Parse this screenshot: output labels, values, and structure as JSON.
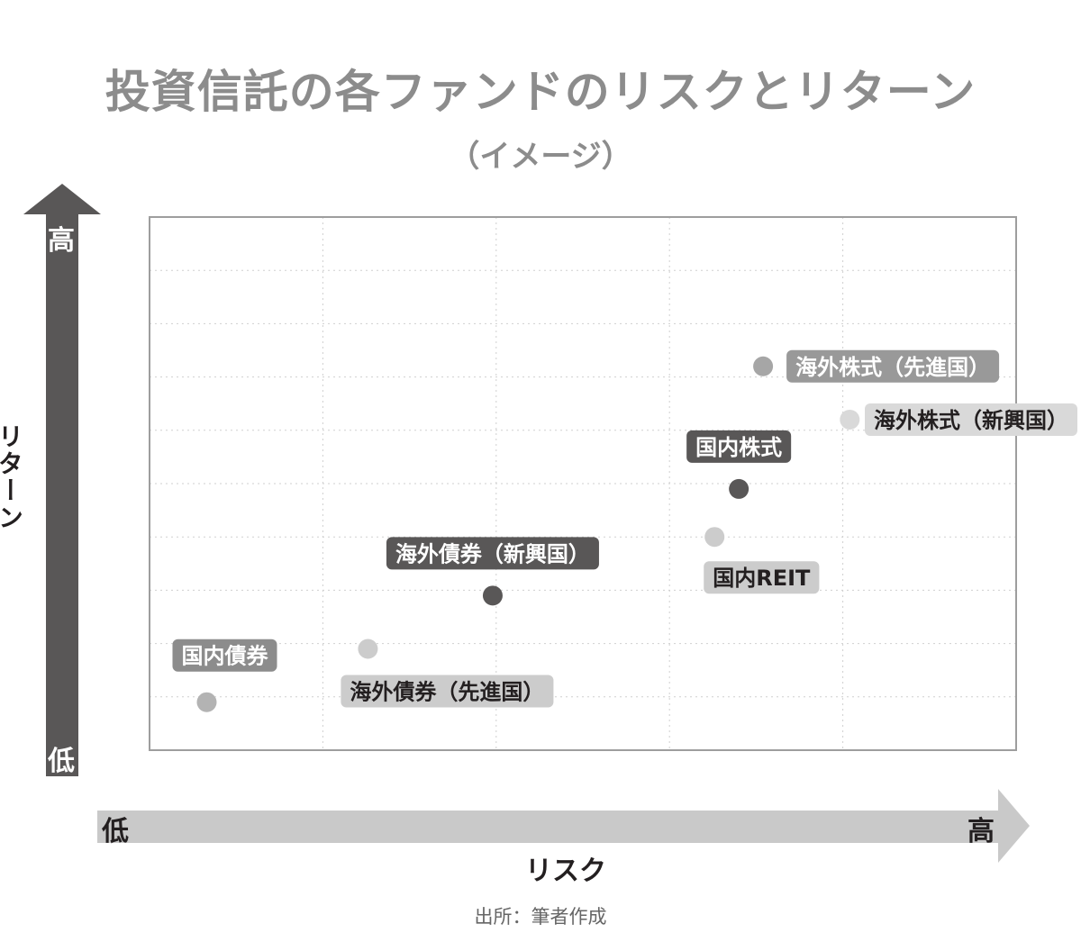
{
  "title": "投資信託の各ファンドのリスクとリターン",
  "subtitle": "（イメージ）",
  "source": "出所：筆者作成",
  "chart_data": {
    "type": "scatter",
    "xlabel": "リスク",
    "ylabel": "リターン",
    "x_axis_ends": {
      "low": "低",
      "high": "高"
    },
    "y_axis_ends": {
      "low": "低",
      "high": "高"
    },
    "xlim": [
      0,
      5
    ],
    "ylim": [
      0,
      10
    ],
    "grid": true,
    "points": [
      {
        "name": "国内債券",
        "x": 0.33,
        "y": 0.9,
        "color": "#b3b3b3",
        "label_color": "#8c8c8c",
        "label_position": "above-left"
      },
      {
        "name": "海外債券（先進国）",
        "x": 1.26,
        "y": 1.9,
        "color": "#cccccc",
        "label_color": "#cccccc",
        "label_position": "below-right"
      },
      {
        "name": "海外債券（新興国）",
        "x": 1.98,
        "y": 2.9,
        "color": "#595757",
        "label_color": "#595757",
        "label_position": "above"
      },
      {
        "name": "国内REIT",
        "x": 3.26,
        "y": 4.0,
        "color": "#cccccc",
        "label_color": "#cccccc",
        "label_position": "below"
      },
      {
        "name": "国内株式",
        "x": 3.4,
        "y": 4.9,
        "color": "#595757",
        "label_color": "#595757",
        "label_position": "above"
      },
      {
        "name": "海外株式（先進国）",
        "x": 3.54,
        "y": 7.2,
        "color": "#a6a6a6",
        "label_color": "#999999",
        "label_position": "right"
      },
      {
        "name": "海外株式（新興国）",
        "x": 4.04,
        "y": 6.2,
        "color": "#d9d9d9",
        "label_color": "#d9d9d9",
        "label_position": "right"
      }
    ]
  }
}
